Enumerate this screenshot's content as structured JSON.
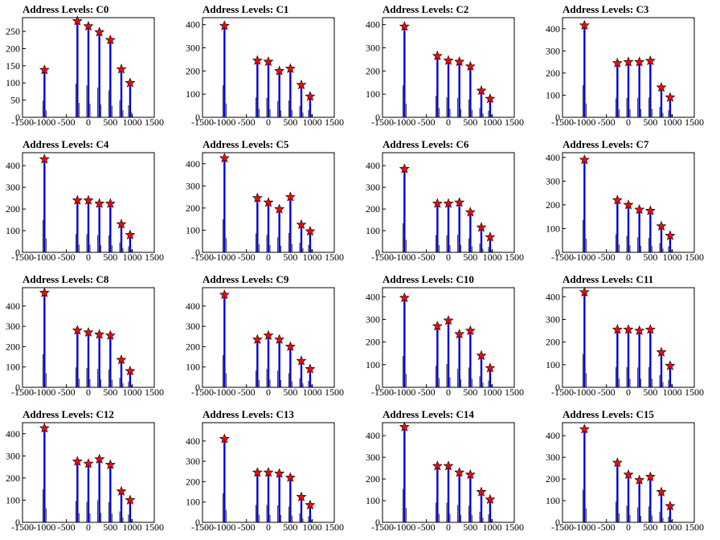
{
  "chart_data": [
    {
      "type": "bar",
      "title": "Address Levels: C0",
      "xlim": [
        -1500,
        1500
      ],
      "ylim": [
        0,
        290
      ],
      "yticks": [
        0,
        50,
        100,
        150,
        200,
        250
      ],
      "xticks": [
        -1500,
        -1000,
        -500,
        0,
        500,
        1000,
        1500
      ],
      "series": [
        {
          "x": [
            -1000,
            -250,
            0,
            250,
            500,
            750,
            950
          ],
          "values": [
            138,
            280,
            265,
            248,
            225,
            140,
            100
          ]
        }
      ]
    },
    {
      "type": "bar",
      "title": "Address Levels: C1",
      "xlim": [
        -1500,
        1500
      ],
      "ylim": [
        0,
        430
      ],
      "yticks": [
        0,
        100,
        200,
        300,
        400
      ],
      "xticks": [
        -1500,
        -1000,
        -500,
        0,
        500,
        1000,
        1500
      ],
      "series": [
        {
          "x": [
            -1000,
            -250,
            0,
            250,
            500,
            750,
            950
          ],
          "values": [
            395,
            245,
            240,
            200,
            210,
            140,
            90
          ]
        }
      ]
    },
    {
      "type": "bar",
      "title": "Address Levels: C2",
      "xlim": [
        -1500,
        1500
      ],
      "ylim": [
        0,
        430
      ],
      "yticks": [
        0,
        100,
        200,
        300,
        400
      ],
      "xticks": [
        -1500,
        -1000,
        -500,
        0,
        500,
        1000,
        1500
      ],
      "series": [
        {
          "x": [
            -1000,
            -250,
            0,
            250,
            500,
            750,
            950
          ],
          "values": [
            392,
            265,
            245,
            240,
            220,
            115,
            80
          ]
        }
      ]
    },
    {
      "type": "bar",
      "title": "Address Levels: C3",
      "xlim": [
        -1500,
        1500
      ],
      "ylim": [
        0,
        450
      ],
      "yticks": [
        0,
        100,
        200,
        300,
        400
      ],
      "xticks": [
        -1500,
        -1000,
        -500,
        0,
        500,
        1000,
        1500
      ],
      "series": [
        {
          "x": [
            -1000,
            -250,
            0,
            250,
            500,
            750,
            950
          ],
          "values": [
            415,
            245,
            250,
            250,
            255,
            135,
            90
          ]
        }
      ]
    },
    {
      "type": "bar",
      "title": "Address Levels: C4",
      "xlim": [
        -1500,
        1500
      ],
      "ylim": [
        0,
        460
      ],
      "yticks": [
        0,
        100,
        200,
        300,
        400
      ],
      "xticks": [
        -1500,
        -1000,
        -500,
        0,
        500,
        1000,
        1500
      ],
      "series": [
        {
          "x": [
            -1000,
            -250,
            0,
            250,
            500,
            750,
            950
          ],
          "values": [
            430,
            240,
            240,
            225,
            225,
            130,
            80
          ]
        }
      ]
    },
    {
      "type": "bar",
      "title": "Address Levels: C5",
      "xlim": [
        -1500,
        1500
      ],
      "ylim": [
        0,
        450
      ],
      "yticks": [
        0,
        100,
        200,
        300,
        400
      ],
      "xticks": [
        -1500,
        -1000,
        -500,
        0,
        500,
        1000,
        1500
      ],
      "series": [
        {
          "x": [
            -1000,
            -250,
            0,
            250,
            500,
            750,
            950
          ],
          "values": [
            425,
            245,
            225,
            195,
            250,
            125,
            95
          ]
        }
      ]
    },
    {
      "type": "bar",
      "title": "Address Levels: C6",
      "xlim": [
        -1500,
        1500
      ],
      "ylim": [
        0,
        460
      ],
      "yticks": [
        0,
        100,
        200,
        300,
        400
      ],
      "xticks": [
        -1500,
        -1000,
        -500,
        0,
        500,
        1000,
        1500
      ],
      "series": [
        {
          "x": [
            -1000,
            -250,
            0,
            250,
            500,
            750,
            950
          ],
          "values": [
            385,
            225,
            225,
            230,
            185,
            115,
            70
          ]
        }
      ]
    },
    {
      "type": "bar",
      "title": "Address Levels: C7",
      "xlim": [
        -1500,
        1500
      ],
      "ylim": [
        0,
        420
      ],
      "yticks": [
        0,
        100,
        200,
        300,
        400
      ],
      "xticks": [
        -1500,
        -1000,
        -500,
        0,
        500,
        1000,
        1500
      ],
      "series": [
        {
          "x": [
            -1000,
            -250,
            0,
            250,
            500,
            750,
            950
          ],
          "values": [
            390,
            220,
            200,
            180,
            175,
            110,
            70
          ]
        }
      ]
    },
    {
      "type": "bar",
      "title": "Address Levels: C8",
      "xlim": [
        -1500,
        1500
      ],
      "ylim": [
        0,
        490
      ],
      "yticks": [
        0,
        100,
        200,
        300,
        400
      ],
      "xticks": [
        -1500,
        -1000,
        -500,
        0,
        500,
        1000,
        1500
      ],
      "series": [
        {
          "x": [
            -1000,
            -250,
            0,
            250,
            500,
            750,
            950
          ],
          "values": [
            465,
            280,
            270,
            260,
            255,
            135,
            80
          ]
        }
      ]
    },
    {
      "type": "bar",
      "title": "Address Levels: C9",
      "xlim": [
        -1500,
        1500
      ],
      "ylim": [
        0,
        490
      ],
      "yticks": [
        0,
        100,
        200,
        300,
        400
      ],
      "xticks": [
        -1500,
        -1000,
        -500,
        0,
        500,
        1000,
        1500
      ],
      "series": [
        {
          "x": [
            -1000,
            -250,
            0,
            250,
            500,
            750,
            950
          ],
          "values": [
            455,
            235,
            255,
            235,
            200,
            130,
            90
          ]
        }
      ]
    },
    {
      "type": "bar",
      "title": "Address Levels: C10",
      "xlim": [
        -1500,
        1500
      ],
      "ylim": [
        0,
        440
      ],
      "yticks": [
        0,
        100,
        200,
        300,
        400
      ],
      "xticks": [
        -1500,
        -1000,
        -500,
        0,
        500,
        1000,
        1500
      ],
      "series": [
        {
          "x": [
            -1000,
            -250,
            0,
            250,
            500,
            750,
            950
          ],
          "values": [
            395,
            270,
            295,
            235,
            250,
            140,
            85
          ]
        }
      ]
    },
    {
      "type": "bar",
      "title": "Address Levels: C11",
      "xlim": [
        -1500,
        1500
      ],
      "ylim": [
        0,
        440
      ],
      "yticks": [
        0,
        100,
        200,
        300,
        400
      ],
      "xticks": [
        -1500,
        -1000,
        -500,
        0,
        500,
        1000,
        1500
      ],
      "series": [
        {
          "x": [
            -1000,
            -250,
            0,
            250,
            500,
            750,
            950
          ],
          "values": [
            420,
            255,
            255,
            250,
            255,
            155,
            95
          ]
        }
      ]
    },
    {
      "type": "bar",
      "title": "Address Levels: C12",
      "xlim": [
        -1500,
        1500
      ],
      "ylim": [
        0,
        450
      ],
      "yticks": [
        0,
        100,
        200,
        300,
        400
      ],
      "xticks": [
        -1500,
        -1000,
        -500,
        0,
        500,
        1000,
        1500
      ],
      "series": [
        {
          "x": [
            -1000,
            -250,
            0,
            250,
            500,
            750,
            950
          ],
          "values": [
            425,
            275,
            265,
            285,
            260,
            140,
            100
          ]
        }
      ]
    },
    {
      "type": "bar",
      "title": "Address Levels: C13",
      "xlim": [
        -1500,
        1500
      ],
      "ylim": [
        0,
        490
      ],
      "yticks": [
        0,
        100,
        200,
        300,
        400
      ],
      "xticks": [
        -1500,
        -1000,
        -500,
        0,
        500,
        1000,
        1500
      ],
      "series": [
        {
          "x": [
            -1000,
            -250,
            0,
            250,
            500,
            750,
            950
          ],
          "values": [
            410,
            245,
            245,
            240,
            220,
            125,
            85
          ]
        }
      ]
    },
    {
      "type": "bar",
      "title": "Address Levels: C14",
      "xlim": [
        -1500,
        1500
      ],
      "ylim": [
        0,
        460
      ],
      "yticks": [
        0,
        100,
        200,
        300,
        400
      ],
      "xticks": [
        -1500,
        -1000,
        -500,
        0,
        500,
        1000,
        1500
      ],
      "series": [
        {
          "x": [
            -1000,
            -250,
            0,
            250,
            500,
            750,
            950
          ],
          "values": [
            440,
            260,
            260,
            230,
            220,
            140,
            105
          ]
        }
      ]
    },
    {
      "type": "bar",
      "title": "Address Levels: C15",
      "xlim": [
        -1500,
        1500
      ],
      "ylim": [
        0,
        460
      ],
      "yticks": [
        0,
        100,
        200,
        300,
        400
      ],
      "xticks": [
        -1500,
        -1000,
        -500,
        0,
        500,
        1000,
        1500
      ],
      "series": [
        {
          "x": [
            -1000,
            -250,
            0,
            250,
            500,
            750,
            950
          ],
          "values": [
            430,
            275,
            220,
            195,
            210,
            140,
            75
          ]
        }
      ]
    }
  ],
  "colors": {
    "bar": "#0000dd",
    "outline": "#000000",
    "marker": "#ff0000"
  }
}
